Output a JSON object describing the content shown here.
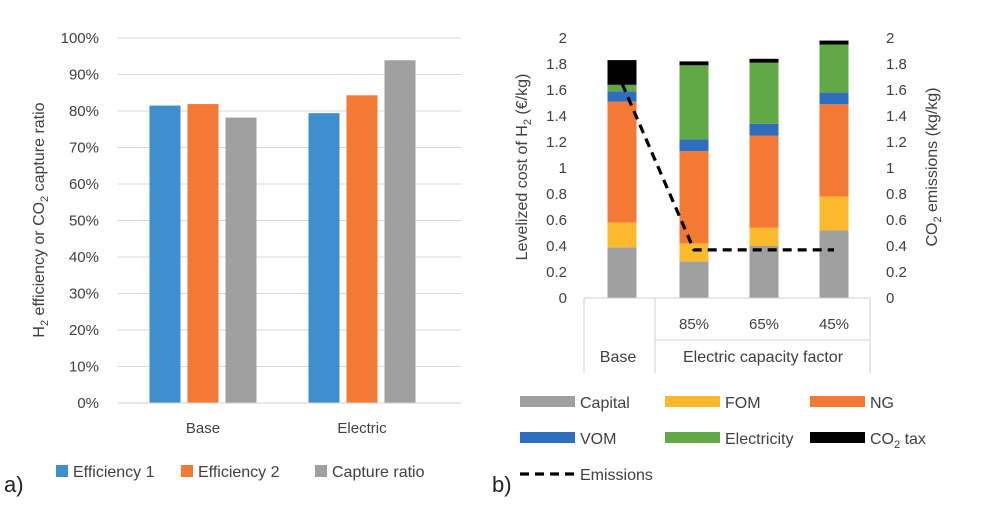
{
  "chart_data": [
    {
      "id": "a",
      "type": "bar",
      "panel_label": "a)",
      "categories": [
        "Base",
        "Electric"
      ],
      "series": [
        {
          "name": "Efficiency 1",
          "color": "#3f8fce",
          "values": [
            0.815,
            0.794
          ]
        },
        {
          "name": "Efficiency 2",
          "color": "#f47935",
          "values": [
            0.819,
            0.843
          ]
        },
        {
          "name": "Capture ratio",
          "color": "#a0a0a0",
          "values": [
            0.782,
            0.939
          ]
        }
      ],
      "ylabel_parts": [
        "H",
        "2",
        " efficiency or CO",
        "2",
        " capture ratio"
      ],
      "ylim": [
        0,
        1
      ],
      "yticks": [
        "0%",
        "10%",
        "20%",
        "30%",
        "40%",
        "50%",
        "60%",
        "70%",
        "80%",
        "90%",
        "100%"
      ],
      "grid": true,
      "legend_position": "bottom"
    },
    {
      "id": "b",
      "type": "bar",
      "stacked": true,
      "panel_label": "b)",
      "categories": [
        "Base",
        "85%",
        "65%",
        "45%"
      ],
      "group_labels": [
        "Base",
        "Electric capacity factor"
      ],
      "series": [
        {
          "name": "Capital",
          "color": "#a0a0a0",
          "values": [
            0.39,
            0.28,
            0.4,
            0.52
          ]
        },
        {
          "name": "FOM",
          "color": "#fcb92e",
          "values": [
            0.19,
            0.14,
            0.14,
            0.26
          ]
        },
        {
          "name": "NG",
          "color": "#f47935",
          "values": [
            0.93,
            0.71,
            0.71,
            0.71
          ]
        },
        {
          "name": "VOM",
          "color": "#2d6fbd",
          "values": [
            0.08,
            0.09,
            0.09,
            0.09
          ]
        },
        {
          "name": "Electricity",
          "color": "#63a847",
          "values": [
            0.05,
            0.57,
            0.47,
            0.37
          ]
        },
        {
          "name": "CO2 tax",
          "color": "#000000",
          "values": [
            0.19,
            0.03,
            0.03,
            0.03
          ]
        }
      ],
      "line_series": {
        "name": "Emissions",
        "color": "#000000",
        "values": [
          1.65,
          0.37,
          0.37,
          0.37
        ]
      },
      "ylabel_parts": [
        "Levelized cost of H",
        "2",
        " (€/kg)"
      ],
      "y2label_parts": [
        "CO",
        "2",
        " emissions (kg/kg)"
      ],
      "ylim": [
        0,
        2
      ],
      "y2lim": [
        0,
        2
      ],
      "yticks": [
        "0",
        "0.2",
        "0.4",
        "0.6",
        "0.8",
        "1",
        "1.2",
        "1.4",
        "1.6",
        "1.8",
        "2"
      ],
      "legend_labels": [
        "Capital",
        "FOM",
        "NG",
        "VOM",
        "Electricity",
        "CO",
        "2",
        " tax",
        "Emissions"
      ],
      "legend_position": "bottom"
    }
  ]
}
